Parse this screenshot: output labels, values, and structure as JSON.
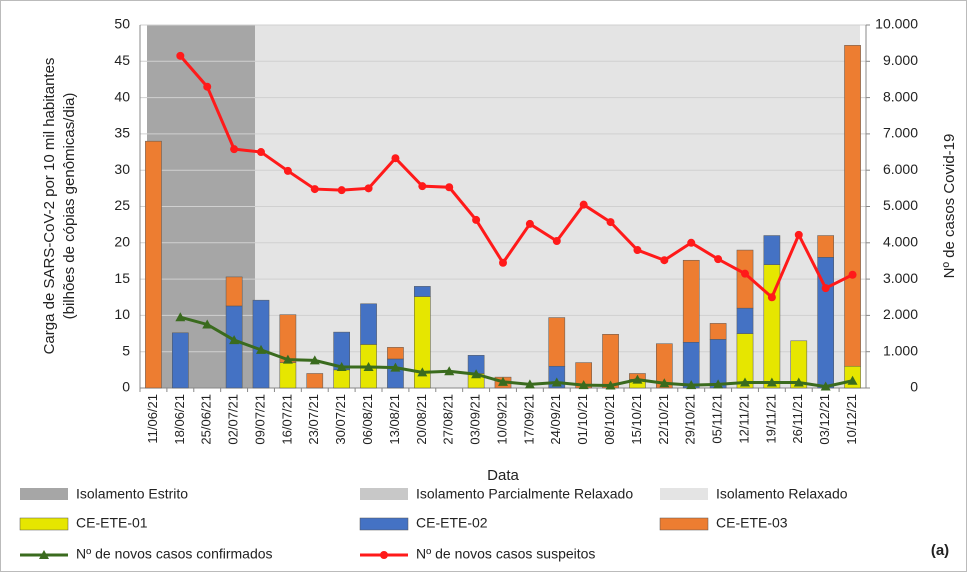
{
  "chart_data": {
    "type": "bar",
    "panel_label": "(a)",
    "y_label": [
      "Carga de SARS-CoV-2 por 10 mil habitantes",
      "(bilhões de cópias genômicas/dia)"
    ],
    "y2_label": "Nº de casos Covid-19",
    "x_label": "Data",
    "periods": [
      {
        "name": "Isolamento Estrito",
        "color": "#a6a6a6"
      },
      {
        "name": "Isolamento Parcialmente Relaxado",
        "color": "#c8c8c8"
      },
      {
        "name": "Isolamento Relaxado",
        "color": "#e4e4e4"
      }
    ],
    "categories": [
      "11/06/21",
      "18/06/21",
      "25/06/21",
      "02/07/21",
      "09/07/21",
      "16/07/21",
      "23/07/21",
      "30/07/21",
      "06/08/21",
      "13/08/21",
      "20/08/21",
      "27/08/21",
      "03/09/21",
      "10/09/21",
      "17/09/21",
      "24/09/21",
      "01/10/21",
      "08/10/21",
      "15/10/21",
      "22/10/21",
      "29/10/21",
      "05/11/21",
      "12/11/21",
      "19/11/21",
      "26/11/21",
      "03/12/21",
      "10/12/21"
    ],
    "series": [
      {
        "name": "CE-ETE-01",
        "color": "#e6e600",
        "values": [
          0,
          0,
          0,
          0,
          0,
          3.5,
          0,
          2.5,
          6,
          0,
          12.6,
          0,
          2,
          0,
          0,
          0,
          0,
          0,
          1.2,
          0,
          0,
          0,
          7.5,
          17,
          6.5,
          0,
          3
        ]
      },
      {
        "name": "CE-ETE-02",
        "color": "#4472c4",
        "values": [
          0,
          7.6,
          0,
          11.3,
          12.1,
          0,
          0,
          5.2,
          5.6,
          4,
          1.4,
          0,
          2.5,
          0,
          0,
          3,
          0,
          0,
          0,
          0,
          6.3,
          6.7,
          3.5,
          4,
          0,
          18,
          0
        ]
      },
      {
        "name": "CE-ETE-03",
        "color": "#ed7d31",
        "values": [
          34,
          0,
          0,
          4,
          0,
          6.6,
          2,
          0,
          0,
          1.6,
          0,
          0,
          0,
          1.5,
          0,
          6.7,
          3.5,
          7.4,
          0.8,
          6.1,
          11.3,
          2.2,
          8,
          0,
          0,
          3,
          44.2
        ]
      },
      {
        "name": "Nº de novos casos confirmados",
        "color": "#3a6b1e",
        "axis": "y2",
        "type": "line",
        "marker": "triangle",
        "values": [
          null,
          1950,
          1750,
          1320,
          1050,
          780,
          760,
          580,
          580,
          560,
          430,
          460,
          380,
          170,
          100,
          150,
          80,
          70,
          230,
          130,
          80,
          100,
          150,
          150,
          150,
          40,
          200
        ]
      },
      {
        "name": "Nº de novos casos suspeitos",
        "color": "#ff1a1a",
        "axis": "y2",
        "type": "line",
        "marker": "circle",
        "values": [
          null,
          9150,
          8300,
          6580,
          6500,
          5980,
          5480,
          5450,
          5500,
          6330,
          5560,
          5530,
          4630,
          3450,
          4520,
          4050,
          5050,
          4570,
          3800,
          3520,
          4000,
          3550,
          3150,
          2500,
          4220,
          2750,
          3120
        ]
      }
    ],
    "ylim": [
      0,
      50
    ],
    "yticks": [
      0,
      5,
      10,
      15,
      20,
      25,
      30,
      35,
      40,
      45,
      50
    ],
    "y2lim": [
      0,
      10000
    ],
    "y2ticks": [
      0,
      {
        "value": 1000,
        "label": "1.000"
      },
      {
        "value": 2000,
        "label": "2.000"
      },
      {
        "value": 3000,
        "label": "3.000"
      },
      {
        "value": 4000,
        "label": "4.000"
      },
      {
        "value": 5000,
        "label": "5.000"
      },
      {
        "value": 6000,
        "label": "6.000"
      },
      {
        "value": 7000,
        "label": "7.000"
      },
      {
        "value": 8000,
        "label": "8.000"
      },
      {
        "value": 9000,
        "label": "9.000"
      },
      {
        "value": 10000,
        "label": "10.000"
      }
    ],
    "grid": true
  }
}
